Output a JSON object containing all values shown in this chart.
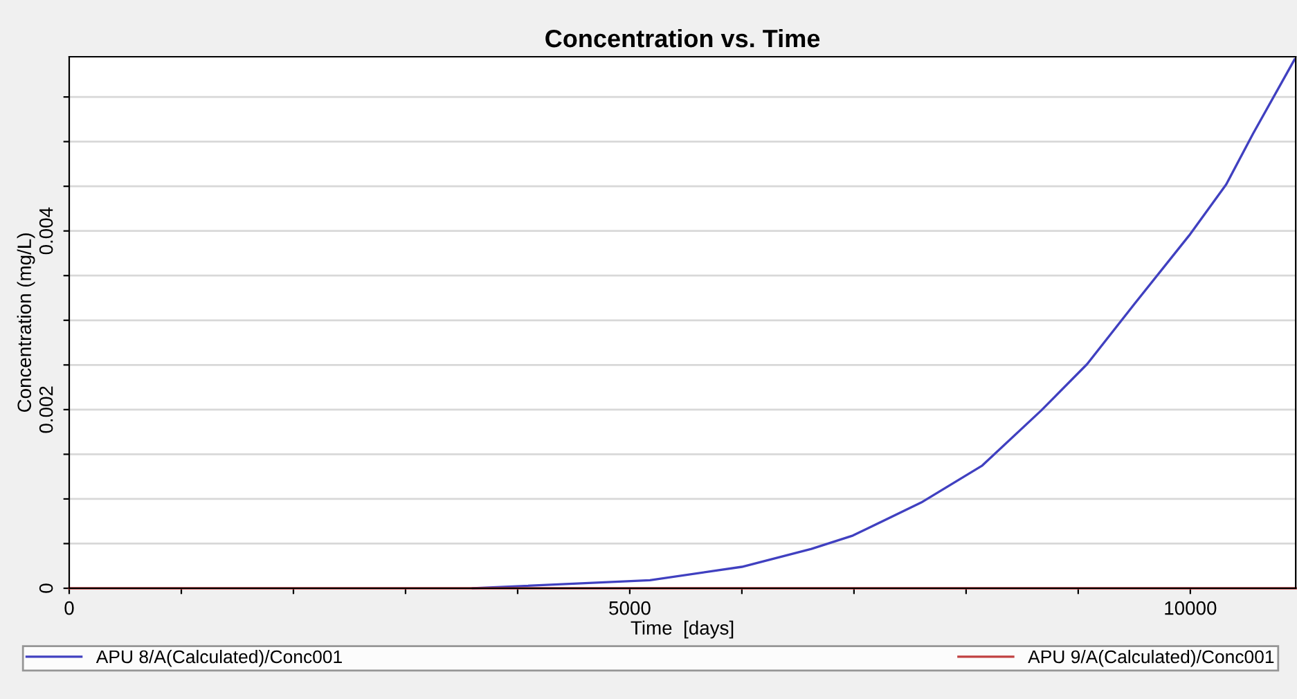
{
  "chart_data": {
    "type": "line",
    "title": "Concentration vs. Time",
    "xlabel": "Time  [days]",
    "ylabel": "Concentration (mg/L)",
    "xlim": [
      0,
      10940
    ],
    "ylim": [
      0,
      0.00595
    ],
    "xticks": [
      0,
      {
        "value": 1000,
        "label": null
      },
      {
        "value": 2000,
        "label": null
      },
      {
        "value": 3000,
        "label": null
      },
      {
        "value": 4000,
        "label": null
      },
      5000,
      {
        "value": 6000,
        "label": null
      },
      {
        "value": 7000,
        "label": null
      },
      {
        "value": 8000,
        "label": null
      },
      {
        "value": 9000,
        "label": null
      },
      10000
    ],
    "yticks": [
      0,
      {
        "value": 0.0005,
        "label": null
      },
      {
        "value": 0.001,
        "label": null
      },
      {
        "value": 0.0015,
        "label": null
      },
      0.002,
      {
        "value": 0.0025,
        "label": null
      },
      {
        "value": 0.003,
        "label": null
      },
      {
        "value": 0.0035,
        "label": null
      },
      0.004,
      {
        "value": 0.0045,
        "label": null
      },
      {
        "value": 0.005,
        "label": null
      },
      {
        "value": 0.0055,
        "label": null
      }
    ],
    "grid": "y",
    "legend": "bottom",
    "marker": "none",
    "line_style": "solid",
    "series": [
      {
        "name": "APU 8/A(Calculated)/Conc001",
        "color": "#4040c0",
        "x": [
          3600,
          5180,
          6000,
          6620,
          6990,
          7600,
          8140,
          8670,
          9080,
          9500,
          9990,
          10320,
          10560,
          10930
        ],
        "values": [
          0,
          9e-05,
          0.00024,
          0.00044,
          0.00059,
          0.00096,
          0.00137,
          0.00199,
          0.00251,
          0.00318,
          0.00395,
          0.00452,
          0.00509,
          0.00592
        ]
      },
      {
        "name": "APU 9/A(Calculated)/Conc001",
        "color": "#c04040",
        "x": [
          0,
          10940
        ],
        "values": [
          0,
          0
        ]
      }
    ]
  }
}
